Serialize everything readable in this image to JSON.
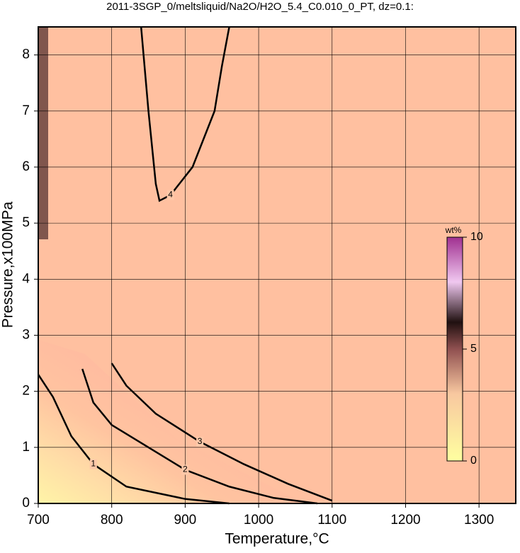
{
  "chart_data": {
    "type": "contour",
    "title": "2011-3SGP_0/meltsliquid/Na2O/H2O_5.4_C0.010_0_PT, dz=0.1:",
    "xlabel": "Temperature,°C",
    "ylabel": "Pressure,x100MPa",
    "xlim": [
      700,
      1350
    ],
    "ylim": [
      0,
      8.5
    ],
    "xticks": [
      700,
      800,
      900,
      1000,
      1100,
      1200,
      1300
    ],
    "yticks": [
      0,
      1,
      2,
      3,
      4,
      5,
      6,
      7,
      8
    ],
    "grid": true,
    "contours": [
      {
        "level": 1,
        "x": [
          700,
          720,
          745,
          775,
          820,
          900,
          960
        ],
        "y": [
          2.3,
          1.9,
          1.2,
          0.7,
          0.3,
          0.08,
          0
        ]
      },
      {
        "level": 2,
        "x": [
          760,
          775,
          800,
          850,
          900,
          960,
          1020,
          1080
        ],
        "y": [
          2.4,
          1.8,
          1.4,
          1.0,
          0.6,
          0.3,
          0.1,
          0
        ]
      },
      {
        "level": 3,
        "x": [
          800,
          820,
          860,
          920,
          980,
          1040,
          1100
        ],
        "y": [
          2.5,
          2.1,
          1.6,
          1.1,
          0.7,
          0.35,
          0.05
        ]
      },
      {
        "level": 4,
        "x": [
          840,
          850,
          860,
          865,
          880,
          910,
          940,
          950,
          960
        ],
        "y": [
          8.5,
          7,
          5.7,
          5.4,
          5.5,
          6.0,
          7.0,
          7.8,
          8.5
        ]
      }
    ],
    "colorbar_label": "wt%",
    "clim": [
      0,
      10
    ],
    "cticks": [
      0,
      5,
      10
    ]
  }
}
